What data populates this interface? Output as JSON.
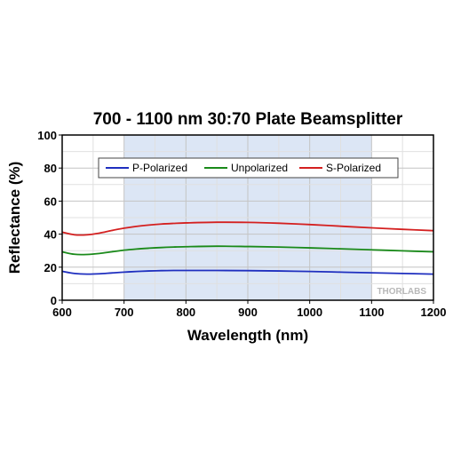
{
  "chart_data": {
    "type": "line",
    "title": "700 - 1100 nm 30:70 Plate Beamsplitter",
    "xlabel": "Wavelength (nm)",
    "ylabel": "Reflectance (%)",
    "xlim": [
      600,
      1200
    ],
    "ylim": [
      0,
      100
    ],
    "x_ticks": [
      600,
      700,
      800,
      900,
      1000,
      1100,
      1200
    ],
    "y_ticks": [
      0,
      20,
      40,
      60,
      80,
      100
    ],
    "grid": true,
    "legend_placement": "top-center",
    "highlight_range": [
      700,
      1100
    ],
    "highlight_color": "#dce6f5",
    "watermark": "THORLABS",
    "series": [
      {
        "name": "P-Polarized",
        "color": "#1f2fbf",
        "x": [
          600,
          620,
          640,
          660,
          680,
          700,
          720,
          740,
          760,
          780,
          800,
          850,
          900,
          950,
          1000,
          1050,
          1100,
          1150,
          1200
        ],
        "y": [
          17.5,
          16.2,
          15.8,
          16.0,
          16.5,
          17.0,
          17.4,
          17.7,
          17.9,
          18.0,
          18.0,
          18.0,
          17.9,
          17.7,
          17.4,
          17.0,
          16.6,
          16.2,
          15.8
        ]
      },
      {
        "name": "Unpolarized",
        "color": "#1a8a1a",
        "x": [
          600,
          620,
          640,
          660,
          680,
          700,
          720,
          740,
          760,
          780,
          800,
          850,
          900,
          950,
          1000,
          1050,
          1100,
          1150,
          1200
        ],
        "y": [
          29.3,
          27.8,
          27.7,
          28.3,
          29.3,
          30.3,
          31.0,
          31.5,
          31.9,
          32.2,
          32.4,
          32.7,
          32.5,
          32.2,
          31.7,
          31.1,
          30.5,
          29.9,
          29.3
        ]
      },
      {
        "name": "S-Polarized",
        "color": "#d42020",
        "x": [
          600,
          620,
          640,
          660,
          680,
          700,
          720,
          740,
          760,
          780,
          800,
          850,
          900,
          950,
          1000,
          1050,
          1100,
          1150,
          1200
        ],
        "y": [
          41.2,
          39.6,
          39.6,
          40.6,
          42.2,
          43.6,
          44.7,
          45.5,
          46.1,
          46.5,
          46.8,
          47.2,
          47.1,
          46.6,
          45.8,
          44.8,
          43.8,
          42.9,
          42.1
        ]
      }
    ]
  }
}
